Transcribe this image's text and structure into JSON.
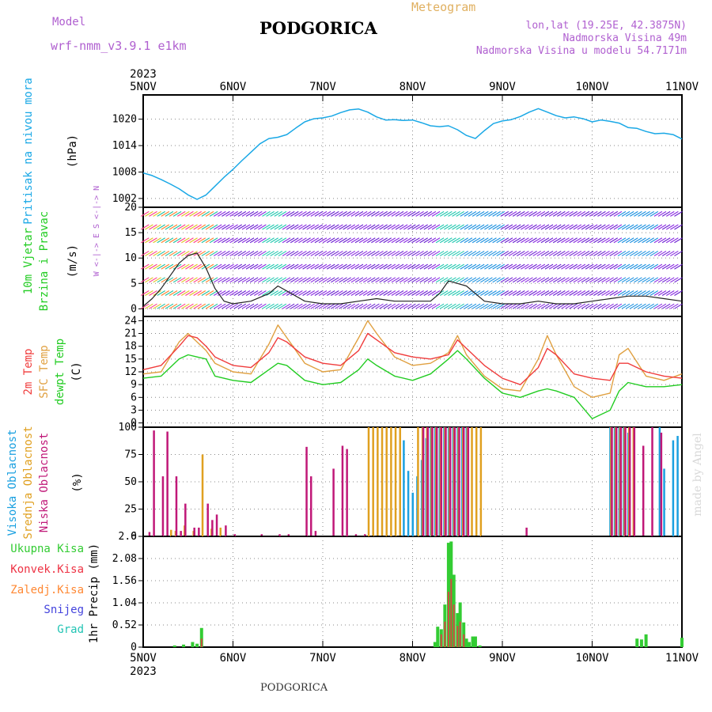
{
  "header": {
    "model_label": "Model",
    "model_name": "wrf-nmm_v3.9.1 e1km",
    "title": "PODGORICA",
    "meteogram": "Meteogram",
    "lonlat": "lon,lat (19.25E, 42.3875N)",
    "elevation": "Nadmorska Visina 49m",
    "model_elevation": "Nadmorska Visina u modelu 54.7171m",
    "footer_city": "PODGORICA",
    "watermark": "made by Angel"
  },
  "colors": {
    "pressure": "#1aa8e6",
    "temp2m": "#f03c3c",
    "sfc": "#e0a040",
    "dewpt": "#22cc22",
    "high_cloud": "#1aa0e0",
    "mid_cloud": "#e0a020",
    "low_cloud": "#c01878",
    "precip_total": "#33cc33",
    "precip_conv": "#ee3344",
    "precip_ice": "#ff8833",
    "precip_snow": "#4444dd",
    "precip_hail": "#22c4b4",
    "model_purple": "#b060d0",
    "meteogram_orange": "#e0b060"
  },
  "time_axis": {
    "year": "2023",
    "ticks": [
      "5NOV",
      "6NOV",
      "7NOV",
      "8NOV",
      "9NOV",
      "10NOV",
      "11NOV"
    ],
    "start_day": 5,
    "end_day": 11
  },
  "panels": {
    "pressure": {
      "label": "Pritisak na nivou mora",
      "unit": "(hPa)"
    },
    "wind": {
      "label1": "10m Vjetar",
      "label2": "Brzina i Pravac",
      "unit": "(m/s)",
      "compass": "W <-|-> E   S <-|-> N"
    },
    "temp": {
      "label1": "2m Temp",
      "label2": "SFC Temp",
      "label3": "dewpt Temp",
      "unit": "(C)"
    },
    "cloud": {
      "label1": "Visoka Oblacnost",
      "label2": "Srednja Oblacnost",
      "label3": "Niska Oblacnost",
      "unit": "(%)"
    },
    "precip": {
      "label_total": "Ukupna Kisa",
      "label_conv": "Konvek.Kisa",
      "label_ice": "Zaledj.Kisa",
      "label_snow": "Snijeg",
      "label_hail": "Grad",
      "unit": "1hr Precip (mm)"
    }
  },
  "chart_data": [
    {
      "type": "line",
      "title": "Pritisak na nivou mora",
      "ylabel": "(hPa)",
      "ylim": [
        1000,
        1025.5
      ],
      "yticks": [
        1002,
        1008,
        1014,
        1020
      ],
      "grid": true,
      "series": [
        {
          "name": "Pritisak na nivou mora",
          "x": [
            5.0,
            5.1,
            5.2,
            5.3,
            5.4,
            5.5,
            5.6,
            5.7,
            5.8,
            5.9,
            6.0,
            6.1,
            6.2,
            6.3,
            6.4,
            6.5,
            6.6,
            6.7,
            6.8,
            6.9,
            7.0,
            7.1,
            7.2,
            7.3,
            7.4,
            7.5,
            7.6,
            7.7,
            7.8,
            7.9,
            8.0,
            8.1,
            8.2,
            8.3,
            8.4,
            8.5,
            8.6,
            8.7,
            8.8,
            8.9,
            9.0,
            9.1,
            9.2,
            9.3,
            9.4,
            9.5,
            9.6,
            9.7,
            9.8,
            9.9,
            10.0,
            10.1,
            10.2,
            10.3,
            10.4,
            10.5,
            10.6,
            10.7,
            10.8,
            10.9,
            11.0
          ],
          "y": [
            1007.8,
            1007.2,
            1006.3,
            1005.3,
            1004.2,
            1002.8,
            1001.8,
            1002.8,
            1004.8,
            1006.8,
            1008.6,
            1010.6,
            1012.5,
            1014.4,
            1015.6,
            1015.9,
            1016.5,
            1018.0,
            1019.4,
            1020.1,
            1020.3,
            1020.7,
            1021.5,
            1022.1,
            1022.3,
            1021.6,
            1020.5,
            1019.8,
            1019.9,
            1019.7,
            1019.8,
            1019.2,
            1018.5,
            1018.3,
            1018.5,
            1017.6,
            1016.3,
            1015.6,
            1017.4,
            1019.0,
            1019.6,
            1019.9,
            1020.6,
            1021.6,
            1022.4,
            1021.6,
            1020.8,
            1020.3,
            1020.5,
            1020.1,
            1019.4,
            1019.8,
            1019.5,
            1019.1,
            1018.1,
            1017.9,
            1017.2,
            1016.7,
            1016.8,
            1016.5,
            1015.5
          ]
        }
      ]
    },
    {
      "type": "line",
      "title": "10m Vjetar Brzina i Pravac",
      "ylabel": "(m/s)",
      "ylim": [
        -1.5,
        20
      ],
      "yticks": [
        0,
        5,
        10,
        15,
        20
      ],
      "grid": true,
      "series": [
        {
          "name": "wind speed",
          "x": [
            5.0,
            5.1,
            5.2,
            5.3,
            5.4,
            5.5,
            5.6,
            5.7,
            5.8,
            5.9,
            6.0,
            6.2,
            6.4,
            6.5,
            6.6,
            6.8,
            7.0,
            7.2,
            7.4,
            7.6,
            7.8,
            8.0,
            8.2,
            8.3,
            8.4,
            8.5,
            8.6,
            8.7,
            8.8,
            9.0,
            9.2,
            9.4,
            9.6,
            9.8,
            10.0,
            10.2,
            10.4,
            10.6,
            10.8,
            11.0
          ],
          "y": [
            0.5,
            2.0,
            4.0,
            6.5,
            9.0,
            10.5,
            11.0,
            8.0,
            4.0,
            1.5,
            1.0,
            1.5,
            3.0,
            4.5,
            3.5,
            1.5,
            1.0,
            1.0,
            1.5,
            2.0,
            1.5,
            1.5,
            1.5,
            3.0,
            5.5,
            5.0,
            4.5,
            3.0,
            1.5,
            1.0,
            1.0,
            1.5,
            1.0,
            1.0,
            1.5,
            2.0,
            2.5,
            2.5,
            2.0,
            1.5
          ]
        }
      ]
    },
    {
      "type": "line",
      "title": "2m / SFC / dewpt Temp",
      "ylabel": "(C)",
      "ylim": [
        -1,
        25
      ],
      "yticks": [
        0,
        3,
        6,
        9,
        12,
        15,
        18,
        21,
        24
      ],
      "grid": true,
      "series": [
        {
          "name": "2m Temp",
          "x": [
            5.0,
            5.2,
            5.4,
            5.5,
            5.6,
            5.7,
            5.8,
            6.0,
            6.2,
            6.4,
            6.5,
            6.6,
            6.8,
            7.0,
            7.2,
            7.4,
            7.5,
            7.6,
            7.8,
            8.0,
            8.2,
            8.4,
            8.5,
            8.6,
            8.8,
            9.0,
            9.2,
            9.4,
            9.5,
            9.6,
            9.8,
            10.0,
            10.2,
            10.3,
            10.4,
            10.6,
            10.8,
            11.0
          ],
          "y": [
            12.5,
            13.5,
            18.0,
            20.5,
            20.0,
            18.0,
            15.5,
            13.5,
            13.0,
            16.5,
            20.0,
            19.0,
            15.5,
            14.0,
            13.5,
            17.0,
            21.0,
            19.5,
            16.5,
            15.5,
            15.0,
            16.0,
            19.5,
            17.5,
            13.5,
            10.5,
            9.0,
            13.0,
            17.5,
            16.0,
            11.5,
            10.5,
            10.0,
            14.0,
            14.0,
            12.0,
            11.0,
            10.5
          ]
        },
        {
          "name": "SFC Temp",
          "x": [
            5.0,
            5.2,
            5.4,
            5.5,
            5.6,
            5.7,
            5.8,
            6.0,
            6.2,
            6.4,
            6.5,
            6.6,
            6.8,
            7.0,
            7.2,
            7.4,
            7.5,
            7.6,
            7.8,
            8.0,
            8.2,
            8.4,
            8.5,
            8.6,
            8.8,
            9.0,
            9.2,
            9.4,
            9.5,
            9.6,
            9.8,
            10.0,
            10.2,
            10.3,
            10.4,
            10.6,
            10.8,
            11.0
          ],
          "y": [
            11.5,
            12.0,
            19.0,
            21.0,
            19.0,
            17.0,
            14.0,
            12.0,
            11.5,
            18.5,
            23.0,
            20.0,
            14.0,
            12.0,
            12.5,
            20.0,
            24.0,
            21.0,
            15.5,
            13.5,
            14.0,
            16.5,
            20.5,
            16.0,
            11.0,
            8.0,
            7.5,
            15.0,
            20.5,
            16.0,
            8.5,
            6.0,
            7.0,
            16.0,
            17.5,
            11.0,
            10.0,
            11.5
          ]
        },
        {
          "name": "dewpt Temp",
          "x": [
            5.0,
            5.2,
            5.4,
            5.5,
            5.6,
            5.7,
            5.8,
            6.0,
            6.2,
            6.4,
            6.5,
            6.6,
            6.8,
            7.0,
            7.2,
            7.4,
            7.5,
            7.6,
            7.8,
            8.0,
            8.2,
            8.4,
            8.5,
            8.6,
            8.8,
            9.0,
            9.2,
            9.4,
            9.5,
            9.6,
            9.8,
            10.0,
            10.2,
            10.3,
            10.4,
            10.6,
            10.8,
            11.0
          ],
          "y": [
            10.5,
            11.0,
            15.0,
            16.0,
            15.5,
            15.0,
            11.0,
            10.0,
            9.5,
            12.5,
            14.0,
            13.5,
            10.0,
            9.0,
            9.5,
            12.5,
            15.0,
            13.5,
            11.0,
            10.0,
            11.5,
            15.0,
            17.0,
            15.0,
            10.5,
            7.0,
            6.0,
            7.5,
            8.0,
            7.5,
            6.0,
            1.0,
            3.0,
            7.5,
            9.5,
            8.5,
            8.5,
            9.0
          ]
        }
      ]
    },
    {
      "type": "bar",
      "title": "Visoka / Srednja / Niska Oblacnost",
      "ylabel": "(%)",
      "ylim": [
        0,
        100
      ],
      "yticks": [
        0,
        25,
        50,
        75,
        100
      ],
      "grid": true,
      "series": [
        {
          "name": "Visoka Oblacnost",
          "x": [
            7.9,
            7.95,
            8.0,
            8.05,
            8.1,
            8.15,
            8.2,
            8.25,
            8.3,
            8.35,
            8.4,
            8.45,
            8.5,
            8.55,
            8.6,
            10.2,
            10.25,
            10.3,
            10.35,
            10.4,
            10.75,
            10.8,
            10.9,
            10.95
          ],
          "y": [
            88,
            60,
            40,
            55,
            70,
            90,
            100,
            100,
            100,
            100,
            100,
            100,
            100,
            100,
            100,
            100,
            100,
            100,
            100,
            95,
            100,
            62,
            88,
            92
          ]
        },
        {
          "name": "Srednja Oblacnost",
          "x": [
            5.3,
            5.35,
            5.45,
            5.55,
            5.65,
            5.75,
            5.85,
            7.5,
            7.55,
            7.6,
            7.65,
            7.7,
            7.75,
            7.8,
            7.85,
            8.05,
            8.1,
            8.15,
            8.2,
            8.25,
            8.3,
            8.35,
            8.4,
            8.45,
            8.5,
            8.55,
            8.6,
            8.65,
            8.7,
            8.75,
            10.2,
            10.25,
            10.3,
            10.35,
            10.4,
            10.45
          ],
          "y": [
            6,
            5,
            10,
            5,
            75,
            7,
            8,
            100,
            100,
            100,
            100,
            100,
            100,
            100,
            100,
            100,
            100,
            100,
            100,
            100,
            100,
            100,
            100,
            100,
            100,
            100,
            100,
            100,
            100,
            100,
            100,
            100,
            100,
            100,
            100,
            100
          ]
        },
        {
          "name": "Niska Oblacnost",
          "x": [
            5.05,
            5.1,
            5.2,
            5.25,
            5.35,
            5.4,
            5.45,
            5.55,
            5.6,
            5.7,
            5.75,
            5.8,
            5.9,
            6.0,
            6.3,
            6.5,
            6.6,
            6.8,
            6.85,
            6.9,
            7.1,
            7.2,
            7.25,
            7.35,
            7.45,
            8.1,
            8.15,
            8.2,
            8.25,
            8.3,
            8.35,
            8.4,
            8.45,
            8.5,
            8.55,
            8.6,
            9.25,
            10.2,
            10.25,
            10.3,
            10.35,
            10.4,
            10.45,
            10.55,
            10.65,
            10.75
          ],
          "y": [
            4,
            97,
            55,
            96,
            55,
            5,
            30,
            8,
            8,
            30,
            15,
            20,
            10,
            2,
            2,
            2,
            2,
            82,
            55,
            5,
            62,
            83,
            80,
            2,
            2,
            100,
            100,
            100,
            100,
            100,
            100,
            100,
            100,
            100,
            100,
            100,
            8,
            100,
            100,
            100,
            100,
            100,
            100,
            83,
            100,
            95
          ]
        }
      ]
    },
    {
      "type": "bar",
      "title": "1hr Precip",
      "ylabel": "1hr Precip (mm)",
      "ylim": [
        0,
        2.6
      ],
      "yticks": [
        0,
        0.52,
        1.04,
        1.56,
        2.08,
        2.6
      ],
      "grid": true,
      "series": [
        {
          "name": "Ukupna Kisa",
          "x": [
            5.35,
            5.45,
            5.55,
            5.6,
            5.65,
            8.25,
            8.28,
            8.32,
            8.36,
            8.4,
            8.43,
            8.46,
            8.5,
            8.53,
            8.57,
            8.6,
            8.63,
            8.67,
            8.7,
            8.75,
            10.5,
            10.55,
            10.6,
            11.0
          ],
          "y": [
            0.04,
            0.06,
            0.12,
            0.08,
            0.45,
            0.12,
            0.48,
            0.42,
            1.0,
            2.45,
            2.48,
            1.7,
            0.8,
            1.05,
            0.58,
            0.2,
            0.12,
            0.25,
            0.25,
            0.04,
            0.2,
            0.18,
            0.3,
            0.22
          ]
        },
        {
          "name": "Konvek.Kisa",
          "x": [
            5.65,
            8.32,
            8.36,
            8.4,
            8.43,
            8.46,
            8.5,
            8.53,
            8.57
          ],
          "y": [
            0.2,
            0.3,
            0.6,
            1.3,
            1.6,
            1.0,
            0.5,
            0.6,
            0.3
          ]
        }
      ]
    }
  ]
}
